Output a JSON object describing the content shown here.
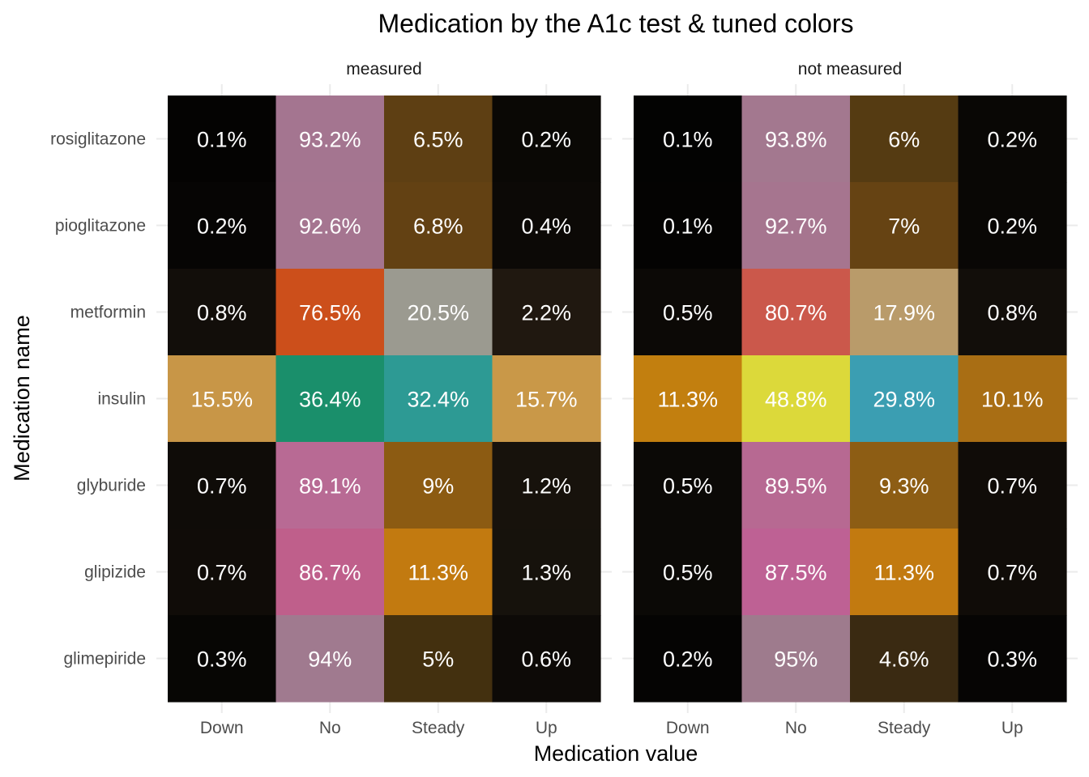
{
  "chart_data": {
    "type": "heatmap",
    "title": "Medication by the A1c test & tuned colors",
    "xlabel": "Medication value",
    "ylabel": "Medication name",
    "x_categories": [
      "Down",
      "No",
      "Steady",
      "Up"
    ],
    "y_categories": [
      "rosiglitazone",
      "pioglitazone",
      "metformin",
      "insulin",
      "glyburide",
      "glipizide",
      "glimepiride"
    ],
    "grid": true,
    "legend": "none",
    "panels": [
      {
        "name": "measured",
        "rows": [
          {
            "medication": "rosiglitazone",
            "values": [
              0.1,
              93.2,
              6.5,
              0.2
            ],
            "labels": [
              "0.1%",
              "93.2%",
              "6.5%",
              "0.2%"
            ],
            "colors": [
              "#040302",
              "#a47590",
              "#5e3f13",
              "#0a0805"
            ]
          },
          {
            "medication": "pioglitazone",
            "values": [
              0.2,
              92.6,
              6.8,
              0.4
            ],
            "labels": [
              "0.2%",
              "92.6%",
              "6.8%",
              "0.4%"
            ],
            "colors": [
              "#060504",
              "#a57590",
              "#634113",
              "#0c0906"
            ]
          },
          {
            "medication": "metformin",
            "values": [
              0.8,
              76.5,
              20.5,
              2.2
            ],
            "labels": [
              "0.8%",
              "76.5%",
              "20.5%",
              "2.2%"
            ],
            "colors": [
              "#120e0a",
              "#cc4f1b",
              "#9b9a90",
              "#201810"
            ]
          },
          {
            "medication": "insulin",
            "values": [
              15.5,
              36.4,
              32.4,
              15.7
            ],
            "labels": [
              "15.5%",
              "36.4%",
              "32.4%",
              "15.7%"
            ],
            "colors": [
              "#c89647",
              "#1a8f6b",
              "#2d9a94",
              "#c99848"
            ]
          },
          {
            "medication": "glyburide",
            "values": [
              0.7,
              89.1,
              9.0,
              1.2
            ],
            "labels": [
              "0.7%",
              "89.1%",
              "9%",
              "1.2%"
            ],
            "colors": [
              "#0f0c08",
              "#b86a94",
              "#8c5b12",
              "#17120c"
            ]
          },
          {
            "medication": "glipizide",
            "values": [
              0.7,
              86.7,
              11.3,
              1.3
            ],
            "labels": [
              "0.7%",
              "86.7%",
              "11.3%",
              "1.3%"
            ],
            "colors": [
              "#100c08",
              "#bf5f8b",
              "#c27a10",
              "#16120c"
            ]
          },
          {
            "medication": "glimepiride",
            "values": [
              0.3,
              94.0,
              5.0,
              0.6
            ],
            "labels": [
              "0.3%",
              "94%",
              "5%",
              "0.6%"
            ],
            "colors": [
              "#070604",
              "#a07a8f",
              "#43300f",
              "#0d0a07"
            ]
          }
        ]
      },
      {
        "name": "not measured",
        "rows": [
          {
            "medication": "rosiglitazone",
            "values": [
              0.1,
              93.8,
              6.0,
              0.2
            ],
            "labels": [
              "0.1%",
              "93.8%",
              "6%",
              "0.2%"
            ],
            "colors": [
              "#030302",
              "#a3788f",
              "#553b12",
              "#090705"
            ]
          },
          {
            "medication": "pioglitazone",
            "values": [
              0.1,
              92.7,
              7.0,
              0.2
            ],
            "labels": [
              "0.1%",
              "92.7%",
              "7%",
              "0.2%"
            ],
            "colors": [
              "#040302",
              "#a6758f",
              "#664313",
              "#090705"
            ]
          },
          {
            "medication": "metformin",
            "values": [
              0.5,
              80.7,
              17.9,
              0.8
            ],
            "labels": [
              "0.5%",
              "80.7%",
              "17.9%",
              "0.8%"
            ],
            "colors": [
              "#0c0906",
              "#cb584b",
              "#b99b6a",
              "#120e0a"
            ]
          },
          {
            "medication": "insulin",
            "values": [
              11.3,
              48.8,
              29.8,
              10.1
            ],
            "labels": [
              "11.3%",
              "48.8%",
              "29.8%",
              "10.1%"
            ],
            "colors": [
              "#c27f0f",
              "#dcd93a",
              "#3b9eb2",
              "#a96e14"
            ]
          },
          {
            "medication": "glyburide",
            "values": [
              0.5,
              89.5,
              9.3,
              0.7
            ],
            "labels": [
              "0.5%",
              "89.5%",
              "9.3%",
              "0.7%"
            ],
            "colors": [
              "#0b0906",
              "#b76992",
              "#8d5d14",
              "#100c08"
            ]
          },
          {
            "medication": "glipizide",
            "values": [
              0.5,
              87.5,
              11.3,
              0.7
            ],
            "labels": [
              "0.5%",
              "87.5%",
              "11.3%",
              "0.7%"
            ],
            "colors": [
              "#0b0906",
              "#be6194",
              "#c27a10",
              "#100c08"
            ]
          },
          {
            "medication": "glimepiride",
            "values": [
              0.2,
              95.0,
              4.6,
              0.3
            ],
            "labels": [
              "0.2%",
              "95%",
              "4.6%",
              "0.3%"
            ],
            "colors": [
              "#050403",
              "#9e7b8d",
              "#3a2a12",
              "#060504"
            ]
          }
        ]
      }
    ]
  }
}
